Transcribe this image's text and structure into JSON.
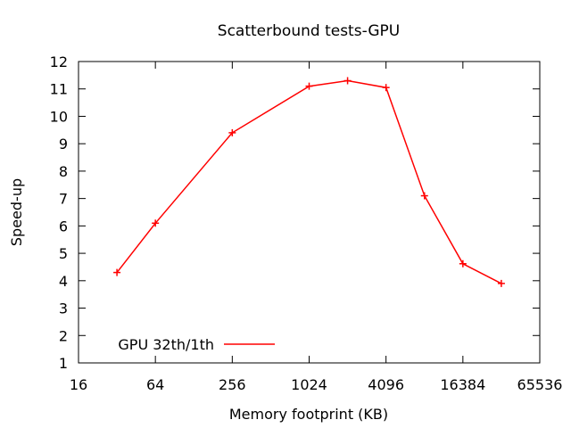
{
  "chart_data": {
    "type": "line",
    "title": "Scatterbound tests-GPU",
    "xlabel": "Memory footprint (KB)",
    "ylabel": "Speed-up",
    "x_scale": "log2",
    "xlim": [
      16,
      65536
    ],
    "ylim": [
      1,
      12
    ],
    "x_ticks": [
      16,
      64,
      256,
      1024,
      4096,
      16384,
      65536
    ],
    "y_ticks": [
      1,
      2,
      3,
      4,
      5,
      6,
      7,
      8,
      9,
      10,
      11,
      12
    ],
    "grid": false,
    "legend_position": "bottom-left",
    "series": [
      {
        "name": "GPU 32th/1th",
        "color": "#ff0000",
        "marker": "plus",
        "x": [
          32,
          64,
          256,
          1024,
          2048,
          4096,
          8192,
          16384,
          32768
        ],
        "y": [
          4.3,
          6.1,
          9.4,
          11.1,
          11.3,
          11.05,
          7.1,
          4.62,
          3.9
        ]
      }
    ]
  }
}
